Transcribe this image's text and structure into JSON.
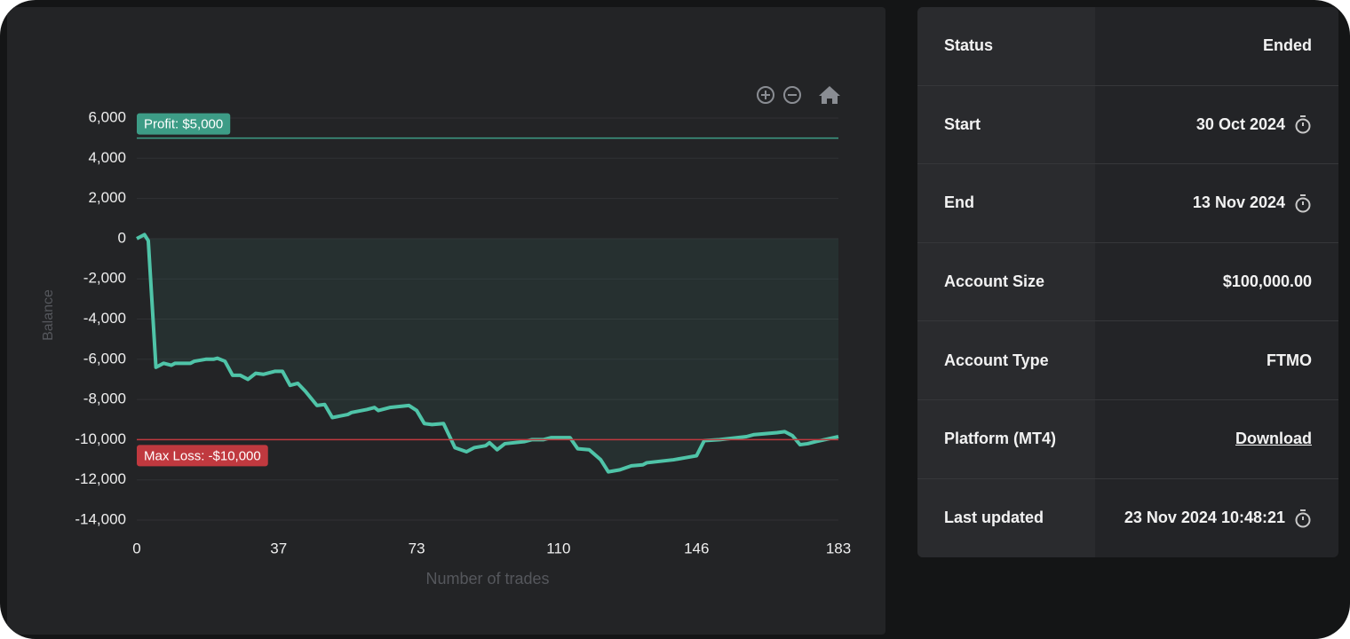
{
  "chart_data": {
    "type": "area",
    "ylabel": "Balance",
    "xlabel": "Number of trades",
    "color": "#4fc4a8",
    "x": [
      0,
      2,
      3,
      5,
      7,
      9,
      10,
      13,
      14,
      15,
      18,
      20,
      21,
      23,
      25,
      27,
      29,
      31,
      33,
      36,
      38,
      40,
      42,
      44,
      47,
      49,
      51,
      55,
      56,
      60,
      62,
      63,
      66,
      71,
      73,
      75,
      77,
      80,
      83,
      86,
      88,
      91,
      92,
      94,
      96,
      101,
      103,
      106,
      108,
      113,
      115,
      118,
      121,
      123,
      126,
      129,
      132,
      133,
      140,
      143,
      146,
      148,
      152,
      159,
      161,
      167,
      169,
      171,
      173,
      175,
      177,
      183
    ],
    "values": [
      0,
      200,
      -100,
      -6400,
      -6200,
      -6300,
      -6200,
      -6200,
      -6200,
      -6100,
      -6000,
      -6000,
      -5950,
      -6100,
      -6800,
      -6800,
      -7000,
      -6700,
      -6750,
      -6600,
      -6600,
      -7300,
      -7200,
      -7600,
      -8300,
      -8250,
      -8900,
      -8750,
      -8650,
      -8500,
      -8400,
      -8550,
      -8400,
      -8300,
      -8550,
      -9200,
      -9250,
      -9200,
      -10400,
      -10600,
      -10400,
      -10300,
      -10150,
      -10500,
      -10200,
      -10100,
      -10000,
      -10000,
      -9900,
      -9900,
      -10450,
      -10500,
      -11000,
      -11600,
      -11500,
      -11300,
      -11250,
      -11150,
      -11000,
      -10900,
      -10800,
      -10050,
      -10000,
      -9850,
      -9750,
      -9650,
      -9600,
      -9800,
      -10250,
      -10200,
      -10100,
      -9850
    ],
    "xlim": [
      0,
      183
    ],
    "xticks": [
      0,
      37,
      73,
      110,
      146,
      183
    ],
    "ylim": [
      -14000,
      6000
    ],
    "yticks": [
      {
        "value": -14000,
        "label": "-14,000"
      },
      {
        "value": -12000,
        "label": "-12,000"
      },
      {
        "value": -10000,
        "label": "-10,000"
      },
      {
        "value": -8000,
        "label": "-8,000"
      },
      {
        "value": -6000,
        "label": "-6,000"
      },
      {
        "value": -4000,
        "label": "-4,000"
      },
      {
        "value": -2000,
        "label": "-2,000"
      },
      0,
      {
        "value": 2000,
        "label": "2,000"
      },
      {
        "value": 4000,
        "label": "4,000"
      },
      {
        "value": 6000,
        "label": "6,000"
      }
    ],
    "grid": true,
    "annotations": [
      {
        "label": "Profit: $5,000",
        "value": 5000,
        "color": "#3d9c86"
      },
      {
        "label": "Max Loss: -$10,000",
        "value": -10000,
        "color": "#c0393f"
      }
    ]
  },
  "details": {
    "rows": [
      [
        "Status",
        "Ended"
      ],
      [
        "Start",
        "30 Oct 2024"
      ],
      [
        "End",
        "13 Nov 2024"
      ],
      [
        "Account Size",
        "$100,000.00"
      ],
      [
        "Account Type",
        "FTMO"
      ],
      [
        "Platform (MT4)",
        "Download"
      ],
      [
        "Last updated",
        "23 Nov 2024 10:48:21"
      ]
    ]
  }
}
